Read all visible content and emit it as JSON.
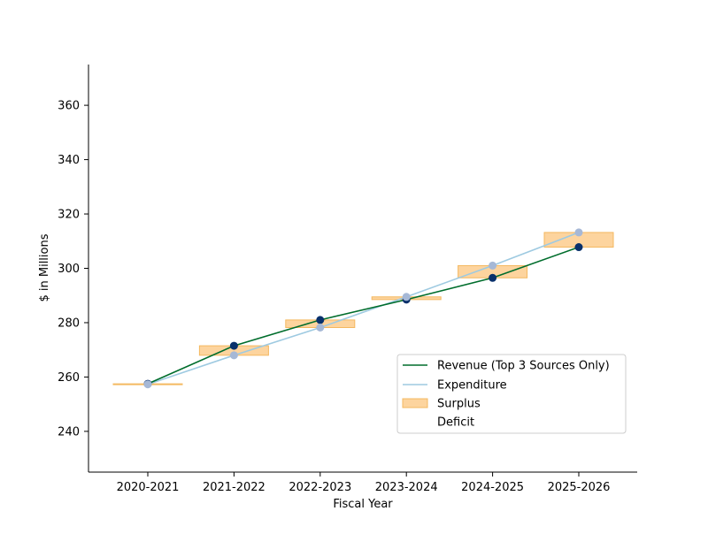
{
  "chart_data": {
    "type": "line",
    "title": "",
    "xlabel": "Fiscal Year",
    "ylabel": "$ in Millions",
    "categories": [
      "2020-2021",
      "2021-2022",
      "2022-2023",
      "2023-2024",
      "2024-2025",
      "2025-2026"
    ],
    "ylim": [
      225,
      375
    ],
    "yticks": [
      240,
      260,
      280,
      300,
      320,
      340,
      360
    ],
    "grid": false,
    "legend_position": "lower-right",
    "series": [
      {
        "name": "Revenue (Top 3 Sources Only)",
        "values": [
          257.5,
          271.5,
          281.0,
          288.5,
          296.5,
          307.8
        ],
        "line_color": "#006d2c",
        "marker_color": "#08306b"
      },
      {
        "name": "Expenditure",
        "values": [
          257.3,
          268.0,
          278.2,
          289.5,
          301.0,
          313.2
        ],
        "line_color": "#9ecae1",
        "marker_color": "#a6b8d6"
      }
    ],
    "band_legend": [
      {
        "name": "Surplus",
        "fill": "#fdd49e",
        "stroke": "#f4b860"
      },
      {
        "name": "Deficit",
        "fill": "none",
        "stroke": "none"
      }
    ]
  }
}
